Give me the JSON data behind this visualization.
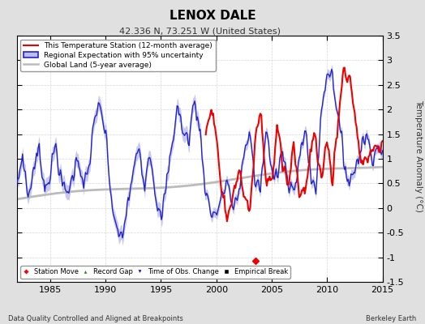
{
  "title": "LENOX DALE",
  "subtitle": "42.336 N, 73.251 W (United States)",
  "ylabel": "Temperature Anomaly (°C)",
  "xlabel_left": "Data Quality Controlled and Aligned at Breakpoints",
  "xlabel_right": "Berkeley Earth",
  "ylim": [
    -1.5,
    3.5
  ],
  "xlim": [
    1982.0,
    2015.0
  ],
  "xticks": [
    1985,
    1990,
    1995,
    2000,
    2005,
    2010,
    2015
  ],
  "yticks": [
    -1.5,
    -1.0,
    -0.5,
    0.0,
    0.5,
    1.0,
    1.5,
    2.0,
    2.5,
    3.0,
    3.5
  ],
  "ytick_labels": [
    "-1.5",
    "-1",
    "-0.5",
    "0",
    "0.5",
    "1",
    "1.5",
    "2",
    "2.5",
    "3",
    "3.5"
  ],
  "station_color": "#EE0000",
  "regional_color": "#2222CC",
  "regional_fill_color": "#BBBBEE",
  "global_color": "#BBBBBB",
  "bg_color": "#E0E0E0",
  "plot_bg_color": "#FFFFFF",
  "grid_color": "#CCCCCC",
  "station_move_year": 2003.5,
  "station_move_val": -1.08,
  "legend1_entries": [
    "This Temperature Station (12-month average)",
    "Regional Expectation with 95% uncertainty",
    "Global Land (5-year average)"
  ],
  "legend2_entries": [
    "Station Move",
    "Record Gap",
    "Time of Obs. Change",
    "Empirical Break"
  ]
}
